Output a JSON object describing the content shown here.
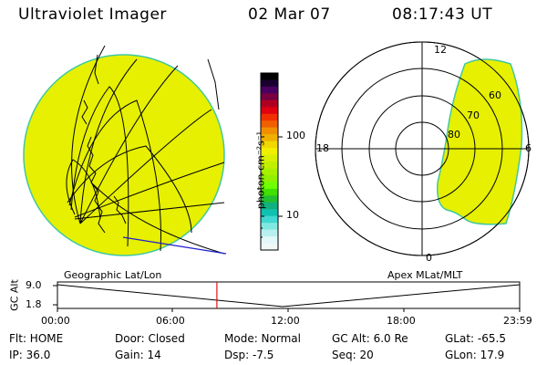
{
  "header": {
    "title": "Ultraviolet Imager",
    "date": "02 Mar 07",
    "time": "08:17:43 UT"
  },
  "colorbar": {
    "unit_label": "photon cm⁻²s⁻¹",
    "tick_labels": [
      "100",
      "10"
    ],
    "colors": [
      "#000000",
      "#1a0030",
      "#4a0060",
      "#7a0040",
      "#b00020",
      "#e00010",
      "#f03000",
      "#f06000",
      "#f09000",
      "#f0b000",
      "#f0d800",
      "#f0f000",
      "#d8f000",
      "#c0f000",
      "#a8f000",
      "#90f000",
      "#70ff00",
      "#40e000",
      "#20c030",
      "#10b080",
      "#10c0b0",
      "#40d8d0",
      "#80e8e0",
      "#b8f0f0",
      "#e0f8f8",
      "#f0f8f8"
    ]
  },
  "left_panel": {
    "caption": "Geographic Lat/Lon"
  },
  "right_panel": {
    "caption": "Apex MLat/MLT",
    "mlt_labels": {
      "top": "12",
      "left": "18",
      "right": "6",
      "bottom": "0"
    },
    "mlat_labels": [
      "60",
      "70",
      "80"
    ]
  },
  "altitude_plot": {
    "axis_title": "GC Alt",
    "y_labels": [
      "9.0",
      "1.8"
    ],
    "x_labels": [
      "00:00",
      "06:00",
      "12:00",
      "18:00",
      "23:59"
    ],
    "current_time_fraction": 0.345
  },
  "status": {
    "flt": "Flt: HOME",
    "ip": "IP: 36.0",
    "door": "Door: Closed",
    "gain": "Gain: 14",
    "mode": "Mode: Normal",
    "dsp": "Dsp:    -7.5",
    "gcalt": "GC Alt: 6.0 Re",
    "seq": "Seq: 20",
    "glat": "GLat: -65.5",
    "glon": "GLon:  17.9"
  },
  "image_color": "#e6f000",
  "edge_color": "#40c8a0"
}
